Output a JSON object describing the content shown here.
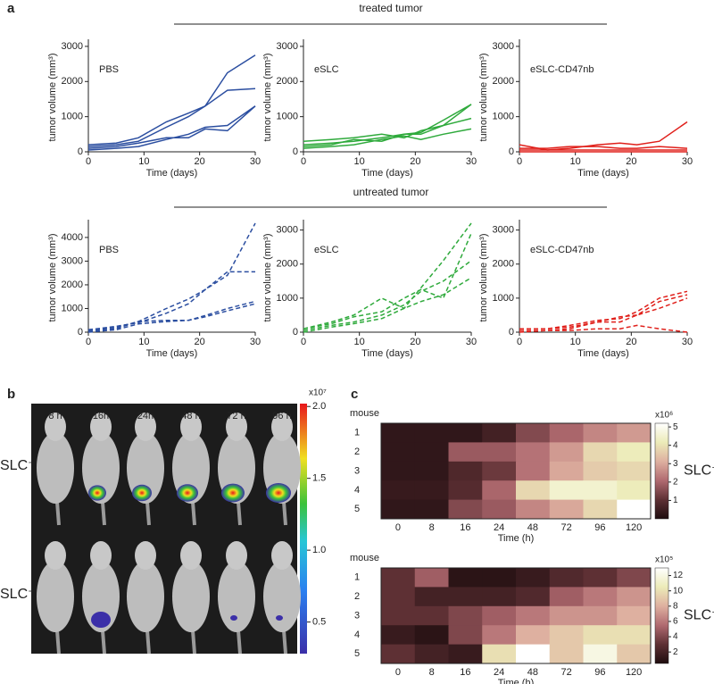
{
  "figure": {
    "panel_labels": [
      "a",
      "b",
      "c"
    ],
    "section_titles": [
      "treated tumor",
      "untreated tumor"
    ],
    "imaging": {
      "columns": [
        "8 h",
        "16h",
        "24h",
        "48 h",
        "72 h",
        "96 h"
      ],
      "rows": [
        {
          "label": "SLC⁻",
          "color": "#222222"
        },
        {
          "label": "SLC⁺",
          "color": "#e0201b"
        }
      ],
      "colorbar_title": "x10⁷",
      "colorbar_lim": [
        0.28,
        2.02
      ],
      "colorbar_ticks": [
        {
          "value": 2,
          "label": "2.0"
        },
        {
          "value": 1.5,
          "label": "1.5"
        },
        {
          "value": 1,
          "label": "1.0"
        },
        {
          "value": 0.5,
          "label": "0.5"
        }
      ]
    }
  },
  "chart_data": [
    {
      "type": "line",
      "label": "PBS",
      "label_color": "#2b4ea0",
      "line_style": "solid",
      "xlabel": "Time (days)",
      "ylabel": "tumor volume (mm³)",
      "x": [
        0,
        5,
        9,
        14,
        18,
        21,
        25,
        30
      ],
      "xlim": [
        0,
        30
      ],
      "xticks": [
        0,
        10,
        20,
        30
      ],
      "ylim": [
        0,
        3100
      ],
      "yticks": [
        0,
        1000,
        2000,
        3000
      ],
      "series": [
        {
          "color": "#2b4ea0",
          "values": [
            200,
            250,
            400,
            850,
            1100,
            1300,
            2250,
            2750
          ]
        },
        {
          "color": "#2b4ea0",
          "values": [
            150,
            200,
            300,
            700,
            1000,
            1300,
            1750,
            1800
          ]
        },
        {
          "color": "#2b4ea0",
          "values": [
            100,
            150,
            250,
            400,
            400,
            650,
            600,
            1300
          ]
        },
        {
          "color": "#2b4ea0",
          "values": [
            50,
            100,
            150,
            350,
            500,
            700,
            750,
            1300
          ]
        }
      ]
    },
    {
      "type": "line",
      "label": "eSLC",
      "label_color": "#2faa3c",
      "line_style": "solid",
      "xlabel": "Time (days)",
      "ylabel": "tumor volume (mm³)",
      "x": [
        0,
        5,
        9,
        14,
        18,
        21,
        25,
        30
      ],
      "xlim": [
        0,
        30
      ],
      "xticks": [
        0,
        10,
        20,
        30
      ],
      "ylim": [
        0,
        3100
      ],
      "yticks": [
        0,
        1000,
        2000,
        3000
      ],
      "series": [
        {
          "color": "#2faa3c",
          "values": [
            300,
            350,
            400,
            500,
            400,
            600,
            750,
            1350
          ]
        },
        {
          "color": "#2faa3c",
          "values": [
            200,
            250,
            300,
            400,
            500,
            550,
            900,
            1350
          ]
        },
        {
          "color": "#2faa3c",
          "values": [
            150,
            200,
            350,
            300,
            500,
            500,
            750,
            950
          ]
        },
        {
          "color": "#2faa3c",
          "values": [
            100,
            150,
            200,
            350,
            450,
            350,
            500,
            650
          ]
        }
      ]
    },
    {
      "type": "line",
      "label": "eSLC-CD47nb",
      "label_color": "#e0201b",
      "line_style": "solid",
      "xlabel": "Time (days)",
      "ylabel": "tumor volume (mm³)",
      "x": [
        0,
        5,
        9,
        14,
        18,
        21,
        25,
        30
      ],
      "xlim": [
        0,
        30
      ],
      "xticks": [
        0,
        10,
        20,
        30
      ],
      "ylim": [
        0,
        3100
      ],
      "yticks": [
        0,
        1000,
        2000,
        3000
      ],
      "series": [
        {
          "color": "#e0201b",
          "values": [
            200,
            50,
            100,
            200,
            250,
            200,
            300,
            850
          ]
        },
        {
          "color": "#e0201b",
          "values": [
            100,
            100,
            150,
            150,
            100,
            100,
            150,
            100
          ]
        },
        {
          "color": "#e0201b",
          "values": [
            50,
            50,
            50,
            50,
            50,
            50,
            50,
            50
          ]
        },
        {
          "color": "#e0201b",
          "values": [
            0,
            0,
            0,
            0,
            0,
            0,
            0,
            0
          ]
        }
      ]
    },
    {
      "type": "line",
      "label": "PBS",
      "label_color": "#2b4ea0",
      "line_style": "dashed",
      "xlabel": "Time (days)",
      "ylabel": "tumor volume (mm³)",
      "x": [
        0,
        5,
        9,
        14,
        18,
        21,
        25,
        30
      ],
      "xlim": [
        0,
        30
      ],
      "xticks": [
        0,
        10,
        20,
        30
      ],
      "ylim": [
        0,
        4600
      ],
      "yticks": [
        0,
        1000,
        2000,
        3000,
        4000
      ],
      "series": [
        {
          "color": "#2b4ea0",
          "values": [
            100,
            200,
            450,
            1000,
            1400,
            1800,
            2400,
            4600
          ]
        },
        {
          "color": "#2b4ea0",
          "values": [
            100,
            250,
            400,
            800,
            1200,
            1800,
            2550,
            2550
          ]
        },
        {
          "color": "#2b4ea0",
          "values": [
            50,
            150,
            450,
            500,
            500,
            700,
            1000,
            1300
          ]
        },
        {
          "color": "#2b4ea0",
          "values": [
            0,
            100,
            350,
            450,
            500,
            650,
            900,
            1200
          ]
        }
      ]
    },
    {
      "type": "line",
      "label": "eSLC",
      "label_color": "#2faa3c",
      "line_style": "dashed",
      "xlabel": "Time (days)",
      "ylabel": "tumor volume (mm³)",
      "x": [
        0,
        5,
        9,
        14,
        18,
        21,
        25,
        30
      ],
      "xlim": [
        0,
        30
      ],
      "xticks": [
        0,
        10,
        20,
        30
      ],
      "ylim": [
        0,
        3200
      ],
      "yticks": [
        0,
        1000,
        2000,
        3000
      ],
      "series": [
        {
          "color": "#2faa3c",
          "values": [
            100,
            300,
            500,
            1000,
            700,
            1300,
            2100,
            3200
          ]
        },
        {
          "color": "#2faa3c",
          "values": [
            100,
            250,
            450,
            600,
            1000,
            1250,
            1000,
            2900
          ]
        },
        {
          "color": "#2faa3c",
          "values": [
            50,
            200,
            300,
            500,
            800,
            1200,
            1500,
            2100
          ]
        },
        {
          "color": "#2faa3c",
          "values": [
            0,
            150,
            250,
            400,
            700,
            900,
            1100,
            1600
          ]
        }
      ]
    },
    {
      "type": "line",
      "label": "eSLC-CD47nb",
      "label_color": "#e0201b",
      "line_style": "dashed",
      "xlabel": "Time (days)",
      "ylabel": "tumor volume (mm³)",
      "x": [
        0,
        5,
        9,
        14,
        18,
        21,
        25,
        30
      ],
      "xlim": [
        0,
        30
      ],
      "xticks": [
        0,
        10,
        20,
        30
      ],
      "ylim": [
        0,
        3200
      ],
      "yticks": [
        0,
        1000,
        2000,
        3000
      ],
      "series": [
        {
          "color": "#e0201b",
          "values": [
            100,
            100,
            200,
            350,
            400,
            600,
            1000,
            1200
          ]
        },
        {
          "color": "#e0201b",
          "values": [
            100,
            100,
            150,
            300,
            450,
            500,
            900,
            1100
          ]
        },
        {
          "color": "#e0201b",
          "values": [
            50,
            50,
            100,
            300,
            300,
            500,
            700,
            1000
          ]
        },
        {
          "color": "#e0201b",
          "values": [
            0,
            50,
            50,
            100,
            100,
            200,
            100,
            0
          ]
        }
      ]
    },
    {
      "type": "heatmap",
      "ylabel": "mouse",
      "xlabel": "Time (h)",
      "colorbar_title": "x10⁶",
      "side_label": "SLC⁻",
      "side_label_color": "#222222",
      "x": [
        0,
        8,
        16,
        24,
        48,
        72,
        96,
        120
      ],
      "y": [
        1,
        2,
        3,
        4,
        5
      ],
      "zlim": [
        0,
        5.2
      ],
      "zticks": [
        1,
        2,
        3,
        4,
        5
      ],
      "colormap": [
        "#1e0d0f",
        "#5e3034",
        "#b06a70",
        "#deb0a0",
        "#ecebb8",
        "#ffffff"
      ],
      "values": [
        [
          0.3,
          0.3,
          0.3,
          0.6,
          1.5,
          2.0,
          2.5,
          2.8
        ],
        [
          0.3,
          0.3,
          1.8,
          1.8,
          2.2,
          2.8,
          3.8,
          4.2
        ],
        [
          0.3,
          0.3,
          0.8,
          1.2,
          2.2,
          3.0,
          3.6,
          3.8
        ],
        [
          0.4,
          0.4,
          0.9,
          2.0,
          3.8,
          4.5,
          4.5,
          4.2
        ],
        [
          0.3,
          0.3,
          1.5,
          1.8,
          2.5,
          3.0,
          3.8,
          5.2
        ]
      ]
    },
    {
      "type": "heatmap",
      "ylabel": "mouse",
      "xlabel": "Time (h)",
      "colorbar_title": "x10⁵",
      "side_label": "SLC⁺",
      "side_label_color": "#e0201b",
      "x": [
        0,
        8,
        16,
        24,
        48,
        72,
        96,
        120
      ],
      "y": [
        1,
        2,
        3,
        4,
        5
      ],
      "zlim": [
        0.5,
        13
      ],
      "zticks": [
        2,
        4,
        6,
        8,
        10,
        12
      ],
      "colormap": [
        "#1e0d0f",
        "#5e3034",
        "#b06a70",
        "#deb0a0",
        "#ecebb8",
        "#ffffff"
      ],
      "values": [
        [
          3,
          5,
          1,
          1,
          1.5,
          2.5,
          3,
          4
        ],
        [
          3,
          2,
          2,
          2,
          2.5,
          5,
          6,
          7
        ],
        [
          3,
          3,
          4,
          5,
          6,
          7,
          7,
          8
        ],
        [
          1.5,
          1,
          4,
          6,
          8,
          9,
          10,
          10
        ],
        [
          3,
          2,
          1.5,
          10,
          13,
          9,
          12,
          9
        ]
      ]
    }
  ]
}
